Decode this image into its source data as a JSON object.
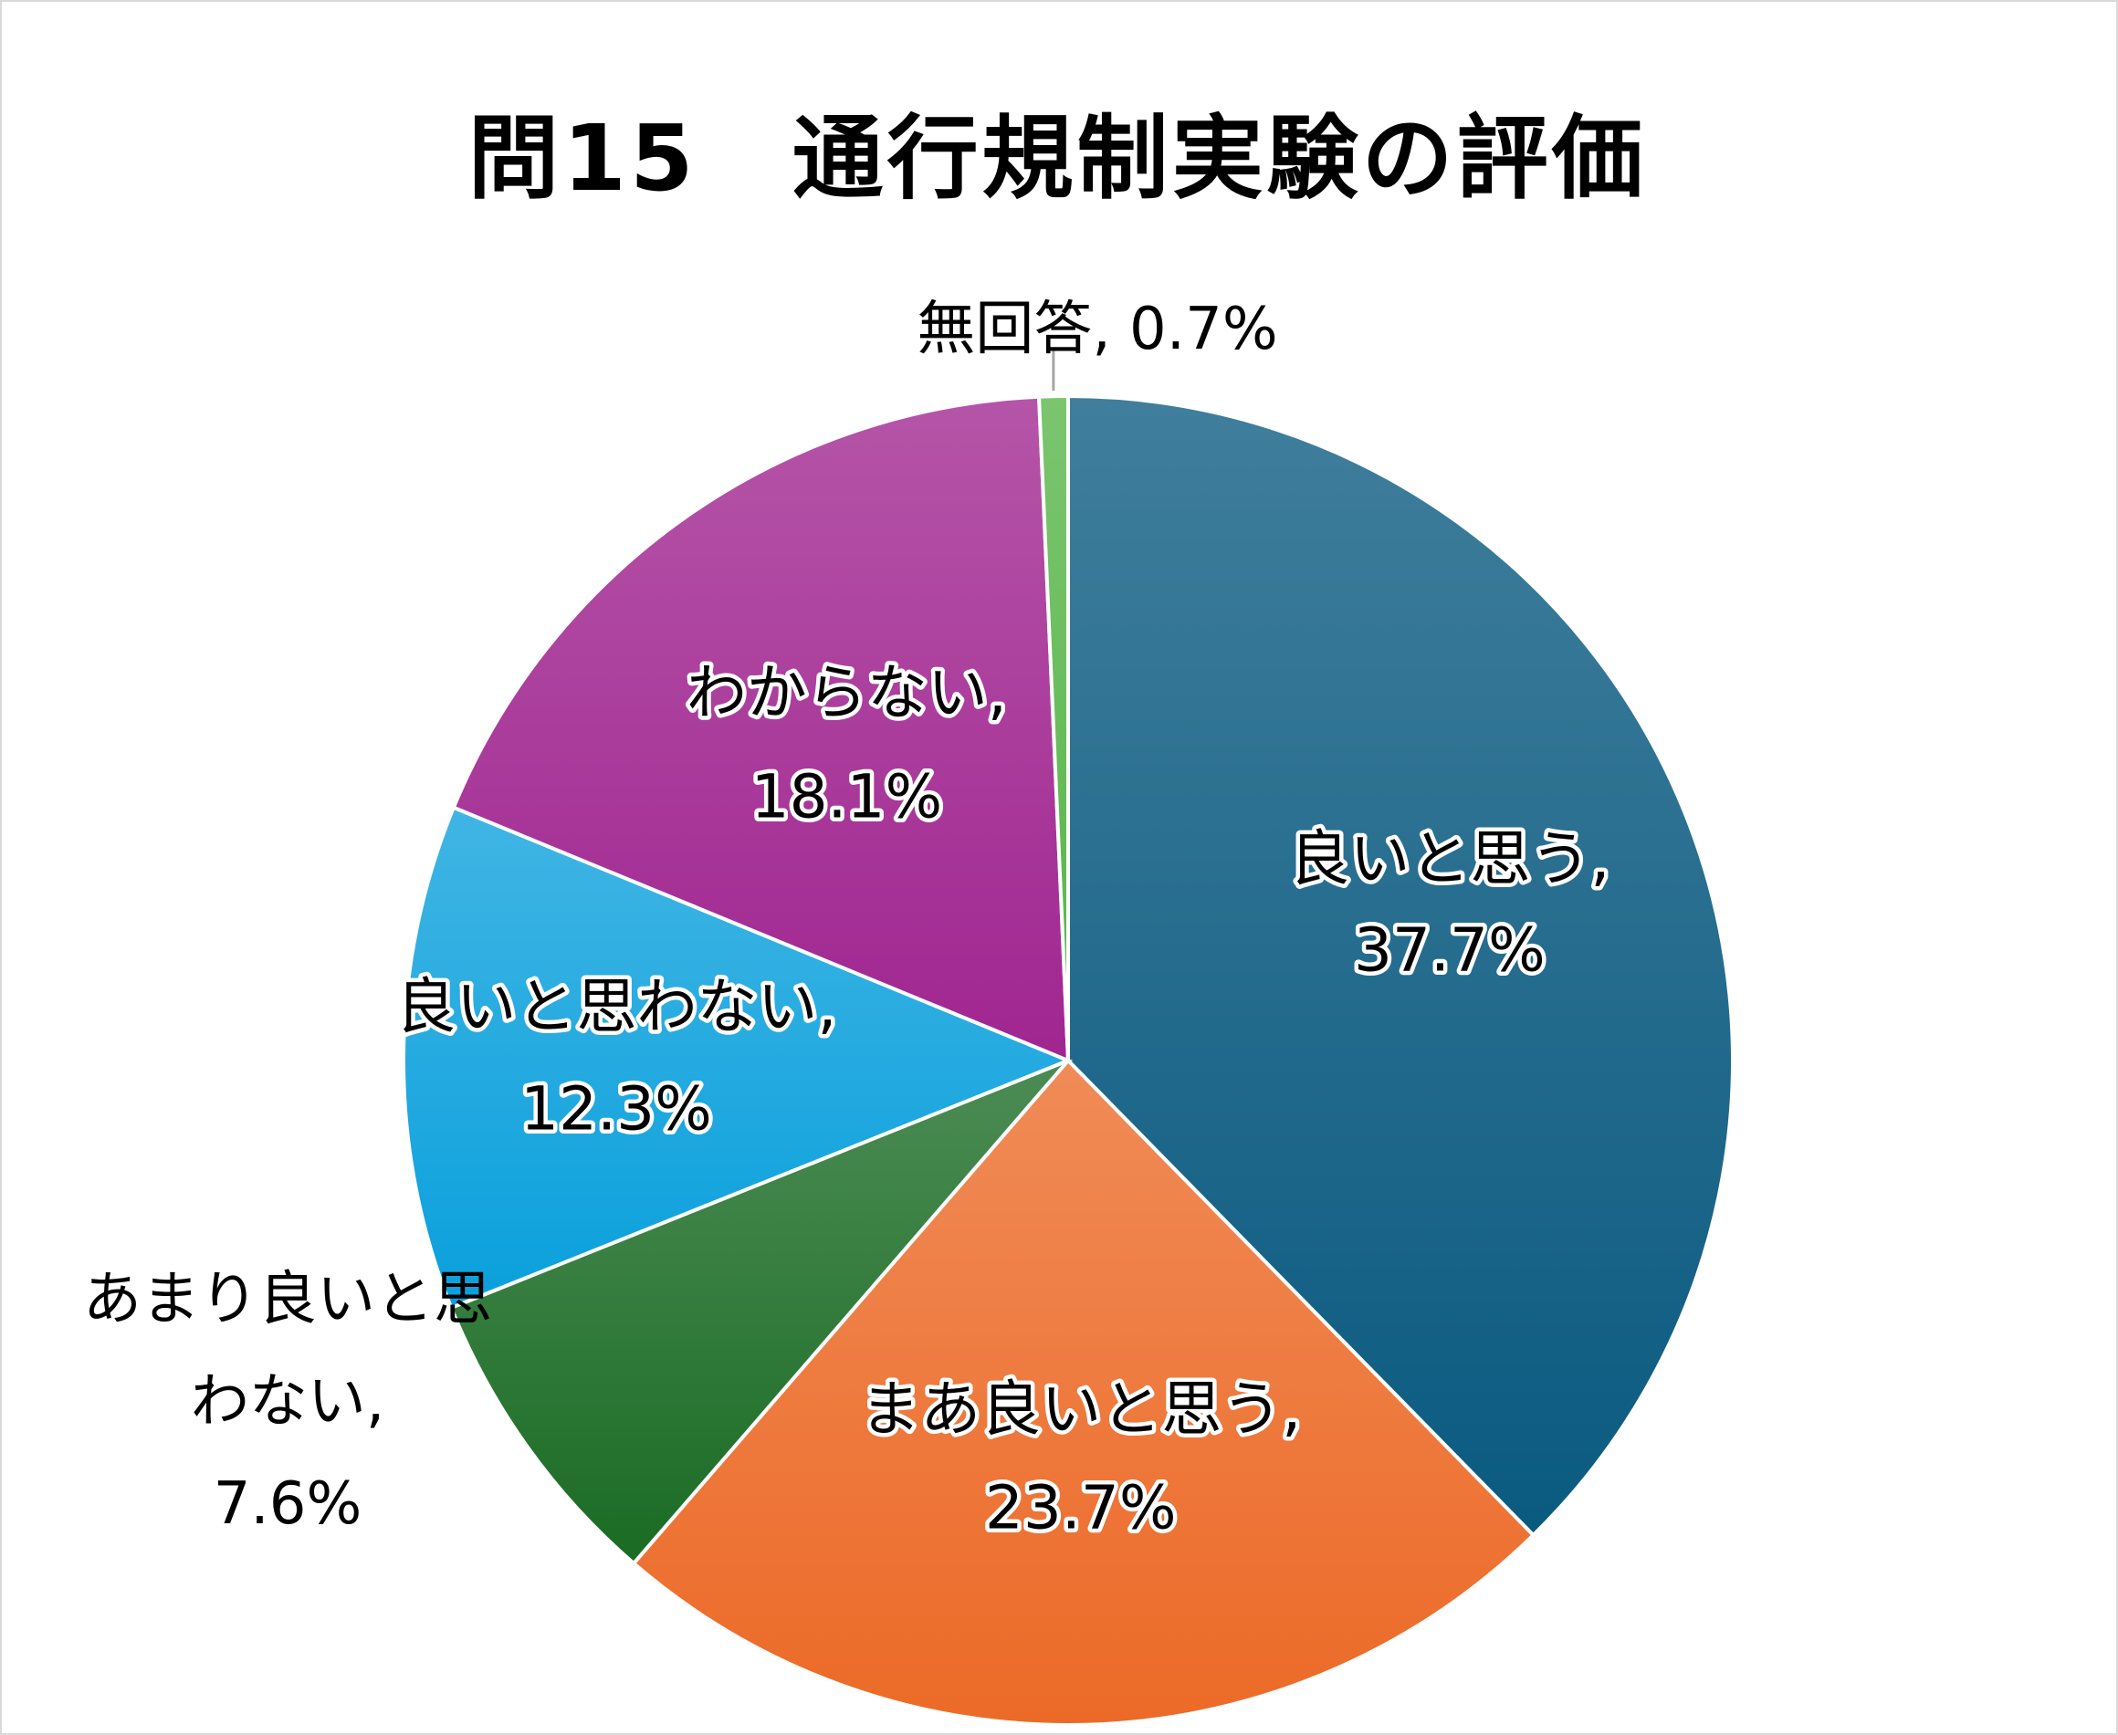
{
  "chart_data": {
    "type": "pie",
    "title": "問15　通行規制実験の評価",
    "slices": [
      {
        "label": "良いと思う",
        "value": 37.7,
        "display": "37.7%",
        "color": "#0a5a80"
      },
      {
        "label": "まあ良いと思う",
        "value": 23.7,
        "display": "23.7%",
        "color": "#ec6a27"
      },
      {
        "label": "あまり良いと思わない",
        "value": 7.6,
        "display": "7.6%",
        "color": "#1a6b24"
      },
      {
        "label": "良いと思わない",
        "value": 12.3,
        "display": "12.3%",
        "color": "#0aa0dc"
      },
      {
        "label": "わからない",
        "value": 18.1,
        "display": "18.1%",
        "color": "#a02590"
      },
      {
        "label": "無回答",
        "value": 0.7,
        "display": "0.7%",
        "color": "#56b447"
      }
    ],
    "data_labels": [
      [
        "良いと思う,",
        "37.7%"
      ],
      [
        "まあ良いと思う,",
        "23.7%"
      ],
      [
        "あまり良いと思",
        "わない,",
        "7.6%"
      ],
      [
        "良いと思わない,",
        "12.3%"
      ],
      [
        "わからない,",
        "18.1%"
      ],
      [
        "無回答, 0.7%"
      ]
    ],
    "legend": "none"
  }
}
